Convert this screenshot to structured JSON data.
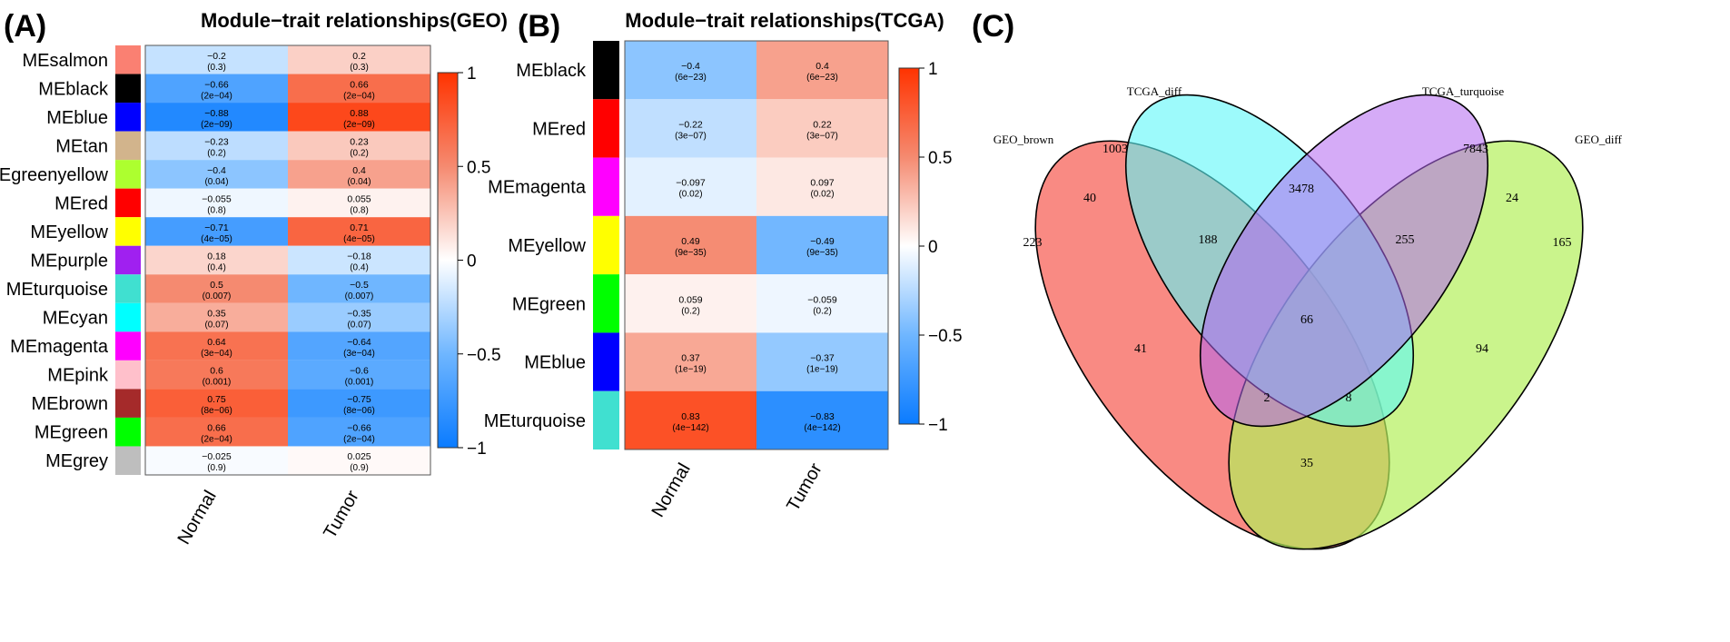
{
  "panels": {
    "A": {
      "letter": "(A)",
      "title": "Module−trait relationships(GEO)",
      "columns": [
        "Normal",
        "Tumor"
      ],
      "rows": [
        {
          "module": "MEsalmon",
          "color": "#FA8072",
          "normal": {
            "r": "−0.2",
            "p": "(0.3)",
            "v": -0.2
          },
          "tumor": {
            "r": "0.2",
            "p": "(0.3)",
            "v": 0.2
          }
        },
        {
          "module": "MEblack",
          "color": "#000000",
          "normal": {
            "r": "−0.66",
            "p": "(2e−04)",
            "v": -0.66
          },
          "tumor": {
            "r": "0.66",
            "p": "(2e−04)",
            "v": 0.66
          }
        },
        {
          "module": "MEblue",
          "color": "#0000FF",
          "normal": {
            "r": "−0.88",
            "p": "(2e−09)",
            "v": -0.88
          },
          "tumor": {
            "r": "0.88",
            "p": "(2e−09)",
            "v": 0.88
          }
        },
        {
          "module": "MEtan",
          "color": "#D2B48C",
          "normal": {
            "r": "−0.23",
            "p": "(0.2)",
            "v": -0.23
          },
          "tumor": {
            "r": "0.23",
            "p": "(0.2)",
            "v": 0.23
          }
        },
        {
          "module": "MEgreenyellow",
          "color": "#ADFF2F",
          "normal": {
            "r": "−0.4",
            "p": "(0.04)",
            "v": -0.4
          },
          "tumor": {
            "r": "0.4",
            "p": "(0.04)",
            "v": 0.4
          }
        },
        {
          "module": "MEred",
          "color": "#FF0000",
          "normal": {
            "r": "−0.055",
            "p": "(0.8)",
            "v": -0.055
          },
          "tumor": {
            "r": "0.055",
            "p": "(0.8)",
            "v": 0.055
          }
        },
        {
          "module": "MEyellow",
          "color": "#FFFF00",
          "normal": {
            "r": "−0.71",
            "p": "(4e−05)",
            "v": -0.71
          },
          "tumor": {
            "r": "0.71",
            "p": "(4e−05)",
            "v": 0.71
          }
        },
        {
          "module": "MEpurple",
          "color": "#A020F0",
          "normal": {
            "r": "0.18",
            "p": "(0.4)",
            "v": 0.18
          },
          "tumor": {
            "r": "−0.18",
            "p": "(0.4)",
            "v": -0.18
          }
        },
        {
          "module": "MEturquoise",
          "color": "#40E0D0",
          "normal": {
            "r": "0.5",
            "p": "(0.007)",
            "v": 0.5
          },
          "tumor": {
            "r": "−0.5",
            "p": "(0.007)",
            "v": -0.5
          }
        },
        {
          "module": "MEcyan",
          "color": "#00FFFF",
          "normal": {
            "r": "0.35",
            "p": "(0.07)",
            "v": 0.35
          },
          "tumor": {
            "r": "−0.35",
            "p": "(0.07)",
            "v": -0.35
          }
        },
        {
          "module": "MEmagenta",
          "color": "#FF00FF",
          "normal": {
            "r": "0.64",
            "p": "(3e−04)",
            "v": 0.64
          },
          "tumor": {
            "r": "−0.64",
            "p": "(3e−04)",
            "v": -0.64
          }
        },
        {
          "module": "MEpink",
          "color": "#FFC0CB",
          "normal": {
            "r": "0.6",
            "p": "(0.001)",
            "v": 0.6
          },
          "tumor": {
            "r": "−0.6",
            "p": "(0.001)",
            "v": -0.6
          }
        },
        {
          "module": "MEbrown",
          "color": "#A52A2A",
          "normal": {
            "r": "0.75",
            "p": "(8e−06)",
            "v": 0.75
          },
          "tumor": {
            "r": "−0.75",
            "p": "(8e−06)",
            "v": -0.75
          }
        },
        {
          "module": "MEgreen",
          "color": "#00FF00",
          "normal": {
            "r": "0.66",
            "p": "(2e−04)",
            "v": 0.66
          },
          "tumor": {
            "r": "−0.66",
            "p": "(2e−04)",
            "v": -0.66
          }
        },
        {
          "module": "MEgrey",
          "color": "#BEBEBE",
          "normal": {
            "r": "−0.025",
            "p": "(0.9)",
            "v": -0.025
          },
          "tumor": {
            "r": "0.025",
            "p": "(0.9)",
            "v": 0.025
          }
        }
      ],
      "scale_ticks": [
        "1",
        "0.5",
        "0",
        "−0.5",
        "−1"
      ]
    },
    "B": {
      "letter": "(B)",
      "title": "Module−trait relationships(TCGA)",
      "columns": [
        "Normal",
        "Tumor"
      ],
      "rows": [
        {
          "module": "MEblack",
          "color": "#000000",
          "normal": {
            "r": "−0.4",
            "p": "(6e−23)",
            "v": -0.4
          },
          "tumor": {
            "r": "0.4",
            "p": "(6e−23)",
            "v": 0.4
          }
        },
        {
          "module": "MEred",
          "color": "#FF0000",
          "normal": {
            "r": "−0.22",
            "p": "(3e−07)",
            "v": -0.22
          },
          "tumor": {
            "r": "0.22",
            "p": "(3e−07)",
            "v": 0.22
          }
        },
        {
          "module": "MEmagenta",
          "color": "#FF00FF",
          "normal": {
            "r": "−0.097",
            "p": "(0.02)",
            "v": -0.097
          },
          "tumor": {
            "r": "0.097",
            "p": "(0.02)",
            "v": 0.097
          }
        },
        {
          "module": "MEyellow",
          "color": "#FFFF00",
          "normal": {
            "r": "0.49",
            "p": "(9e−35)",
            "v": 0.49
          },
          "tumor": {
            "r": "−0.49",
            "p": "(9e−35)",
            "v": -0.49
          }
        },
        {
          "module": "MEgreen",
          "color": "#00FF00",
          "normal": {
            "r": "0.059",
            "p": "(0.2)",
            "v": 0.059
          },
          "tumor": {
            "r": "−0.059",
            "p": "(0.2)",
            "v": -0.059
          }
        },
        {
          "module": "MEblue",
          "color": "#0000FF",
          "normal": {
            "r": "0.37",
            "p": "(1e−19)",
            "v": 0.37
          },
          "tumor": {
            "r": "−0.37",
            "p": "(1e−19)",
            "v": -0.37
          }
        },
        {
          "module": "MEturquoise",
          "color": "#40E0D0",
          "normal": {
            "r": "0.83",
            "p": "(4e−142)",
            "v": 0.83
          },
          "tumor": {
            "r": "−0.83",
            "p": "(4e−142)",
            "v": -0.83
          }
        }
      ],
      "scale_ticks": [
        "1",
        "0.5",
        "0",
        "−0.5",
        "−1"
      ]
    },
    "C": {
      "letter": "(C)",
      "sets": [
        {
          "name": "GEO_brown",
          "color": "#F8766D"
        },
        {
          "name": "TCGA_diff",
          "color": "#5BF6F8"
        },
        {
          "name": "TCGA_turquoise",
          "color": "#B266F0"
        },
        {
          "name": "GEO_diff",
          "color": "#B3F05B"
        }
      ],
      "regions": [
        {
          "sets": "GEO_brown",
          "count": "223"
        },
        {
          "sets": "TCGA_diff",
          "count": "1003"
        },
        {
          "sets": "TCGA_turquoise",
          "count": "7843"
        },
        {
          "sets": "GEO_diff",
          "count": "165"
        },
        {
          "sets": "GEO_brown&TCGA_diff",
          "count": "40"
        },
        {
          "sets": "TCGA_diff&TCGA_turquoise",
          "count": "3478"
        },
        {
          "sets": "TCGA_turquoise&GEO_diff",
          "count": "24"
        },
        {
          "sets": "GEO_brown&TCGA_diff&TCGA_turquoise",
          "count": "188"
        },
        {
          "sets": "TCGA_diff&TCGA_turquoise&GEO_diff",
          "count": "255"
        },
        {
          "sets": "all",
          "count": "66"
        },
        {
          "sets": "GEO_brown&TCGA_turquoise",
          "count": "41"
        },
        {
          "sets": "TCGA_diff&GEO_diff",
          "count": "94"
        },
        {
          "sets": "GEO_brown&TCGA_turquoise&GEO_diff",
          "count": "2"
        },
        {
          "sets": "GEO_brown&TCGA_diff&GEO_diff",
          "count": "8"
        },
        {
          "sets": "GEO_brown&GEO_diff",
          "count": "35"
        }
      ]
    }
  },
  "chart_data": [
    {
      "type": "heatmap",
      "title": "Module−trait relationships(GEO)",
      "x": [
        "Normal",
        "Tumor"
      ],
      "y": [
        "MEsalmon",
        "MEblack",
        "MEblue",
        "MEtan",
        "MEgreenyellow",
        "MEred",
        "MEyellow",
        "MEpurple",
        "MEturquoise",
        "MEcyan",
        "MEmagenta",
        "MEpink",
        "MEbrown",
        "MEgreen",
        "MEgrey"
      ],
      "values": [
        [
          -0.2,
          0.2
        ],
        [
          -0.66,
          0.66
        ],
        [
          -0.88,
          0.88
        ],
        [
          -0.23,
          0.23
        ],
        [
          -0.4,
          0.4
        ],
        [
          -0.055,
          0.055
        ],
        [
          -0.71,
          0.71
        ],
        [
          0.18,
          -0.18
        ],
        [
          0.5,
          -0.5
        ],
        [
          0.35,
          -0.35
        ],
        [
          0.64,
          -0.64
        ],
        [
          0.6,
          -0.6
        ],
        [
          0.75,
          -0.75
        ],
        [
          0.66,
          -0.66
        ],
        [
          -0.025,
          0.025
        ]
      ],
      "color_range": [
        -1,
        1
      ]
    },
    {
      "type": "heatmap",
      "title": "Module−trait relationships(TCGA)",
      "x": [
        "Normal",
        "Tumor"
      ],
      "y": [
        "MEblack",
        "MEred",
        "MEmagenta",
        "MEyellow",
        "MEgreen",
        "MEblue",
        "MEturquoise"
      ],
      "values": [
        [
          -0.4,
          0.4
        ],
        [
          -0.22,
          0.22
        ],
        [
          -0.097,
          0.097
        ],
        [
          0.49,
          -0.49
        ],
        [
          0.059,
          -0.059
        ],
        [
          0.37,
          -0.37
        ],
        [
          0.83,
          -0.83
        ]
      ],
      "color_range": [
        -1,
        1
      ]
    }
  ]
}
